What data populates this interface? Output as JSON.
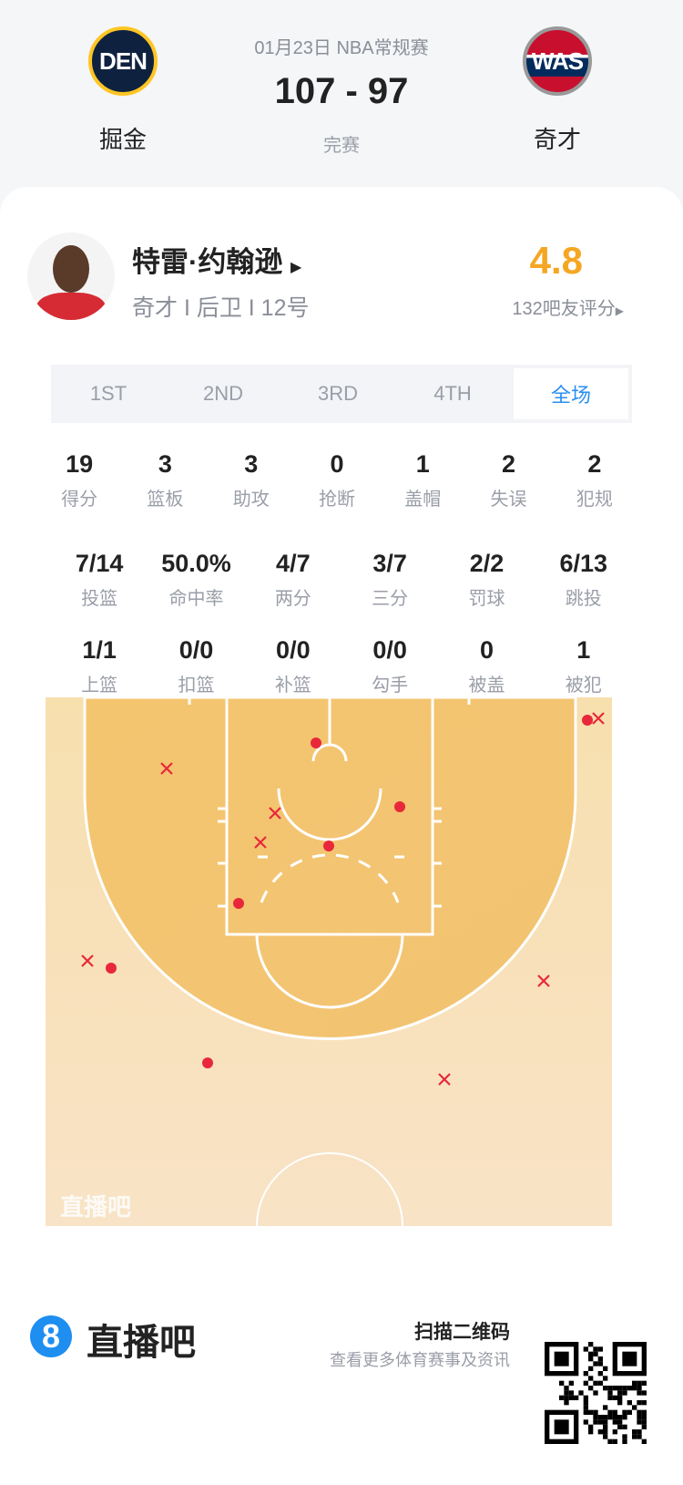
{
  "game": {
    "date_league": "01月23日 NBA常规赛",
    "score": "107 - 97",
    "status": "完赛",
    "home": {
      "abbr": "DEN",
      "name": "掘金"
    },
    "away": {
      "abbr": "WAS",
      "name": "奇才"
    }
  },
  "player": {
    "name": "特雷·约翰逊",
    "info": "奇才 I 后卫 I 12号",
    "rating": "4.8",
    "rating_count": "132吧友评分",
    "rating_color": "#f5a623"
  },
  "tabs": [
    {
      "label": "1ST"
    },
    {
      "label": "2ND"
    },
    {
      "label": "3RD"
    },
    {
      "label": "4TH"
    },
    {
      "label": "全场",
      "active": true
    }
  ],
  "stats_row1": [
    {
      "v": "19",
      "l": "得分"
    },
    {
      "v": "3",
      "l": "篮板"
    },
    {
      "v": "3",
      "l": "助攻"
    },
    {
      "v": "0",
      "l": "抢断"
    },
    {
      "v": "1",
      "l": "盖帽"
    },
    {
      "v": "2",
      "l": "失误"
    },
    {
      "v": "2",
      "l": "犯规"
    }
  ],
  "stats_row2": [
    {
      "v": "7/14",
      "l": "投篮"
    },
    {
      "v": "50.0%",
      "l": "命中率"
    },
    {
      "v": "4/7",
      "l": "两分"
    },
    {
      "v": "3/7",
      "l": "三分"
    },
    {
      "v": "2/2",
      "l": "罚球"
    },
    {
      "v": "6/13",
      "l": "跳投"
    }
  ],
  "stats_row3": [
    {
      "v": "1/1",
      "l": "上篮"
    },
    {
      "v": "0/0",
      "l": "扣篮"
    },
    {
      "v": "0/0",
      "l": "补篮"
    },
    {
      "v": "0/0",
      "l": "勾手"
    },
    {
      "v": "0",
      "l": "被盖"
    },
    {
      "v": "1",
      "l": "被犯"
    }
  ],
  "shot_chart": {
    "watermark": "直播吧",
    "made_count": 7,
    "missed_count": 7,
    "made_color": "#e8283a"
  },
  "footer": {
    "brand": "直播吧",
    "scan": "扫描二维码",
    "sub": "查看更多体育赛事及资讯"
  }
}
